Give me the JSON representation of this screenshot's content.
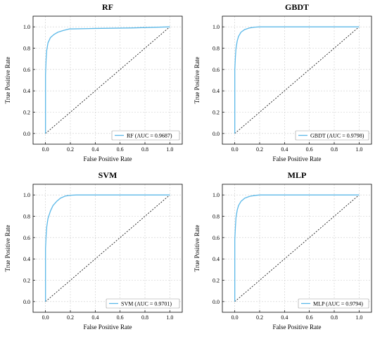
{
  "chart_data": [
    {
      "type": "line",
      "title": "RF",
      "xlabel": "False Positive Rate",
      "ylabel": "True Positive Rate",
      "xlim": [
        -0.1,
        1.1
      ],
      "ylim": [
        -0.1,
        1.1
      ],
      "xticks": [
        "0.0",
        "0.2",
        "0.4",
        "0.6",
        "0.8",
        "1.0"
      ],
      "yticks": [
        "0.0",
        "0.2",
        "0.4",
        "0.6",
        "0.8",
        "1.0"
      ],
      "grid": true,
      "legend_position": "bottom-right",
      "legend_label": "RF (AUC = 0.9687)",
      "colors": {
        "roc": "#5bb8e8",
        "diagonal": "#000000"
      },
      "series": [
        {
          "name": "RF (AUC = 0.9687)",
          "x": [
            0.0,
            0.0,
            0.005,
            0.01,
            0.02,
            0.04,
            0.07,
            0.1,
            0.14,
            0.19,
            0.4,
            0.7,
            1.0
          ],
          "y": [
            0.0,
            0.55,
            0.7,
            0.78,
            0.85,
            0.9,
            0.93,
            0.95,
            0.965,
            0.98,
            0.985,
            0.99,
            1.0
          ]
        }
      ]
    },
    {
      "type": "line",
      "title": "GBDT",
      "xlabel": "False Positive Rate",
      "ylabel": "True Positive Rate",
      "xlim": [
        -0.1,
        1.1
      ],
      "ylim": [
        -0.1,
        1.1
      ],
      "xticks": [
        "0.0",
        "0.2",
        "0.4",
        "0.6",
        "0.8",
        "1.0"
      ],
      "yticks": [
        "0.0",
        "0.2",
        "0.4",
        "0.6",
        "0.8",
        "1.0"
      ],
      "grid": true,
      "legend_position": "bottom-right",
      "legend_label": "GBDT (AUC = 0.9798)",
      "colors": {
        "roc": "#5bb8e8",
        "diagonal": "#000000"
      },
      "series": [
        {
          "name": "GBDT (AUC = 0.9798)",
          "x": [
            0.0,
            0.0,
            0.005,
            0.01,
            0.02,
            0.03,
            0.05,
            0.08,
            0.12,
            0.16,
            0.2,
            0.3,
            1.0
          ],
          "y": [
            0.0,
            0.6,
            0.72,
            0.8,
            0.87,
            0.91,
            0.95,
            0.975,
            0.99,
            0.997,
            1.0,
            1.0,
            1.0
          ]
        }
      ]
    },
    {
      "type": "line",
      "title": "SVM",
      "xlabel": "False Positive Rate",
      "ylabel": "True Positive Rate",
      "xlim": [
        -0.1,
        1.1
      ],
      "ylim": [
        -0.1,
        1.1
      ],
      "xticks": [
        "0.0",
        "0.2",
        "0.4",
        "0.6",
        "0.8",
        "1.0"
      ],
      "yticks": [
        "0.0",
        "0.2",
        "0.4",
        "0.6",
        "0.8",
        "1.0"
      ],
      "grid": true,
      "legend_position": "bottom-right",
      "legend_label": "SVM (AUC = 0.9701)",
      "colors": {
        "roc": "#5bb8e8",
        "diagonal": "#000000"
      },
      "series": [
        {
          "name": "SVM (AUC = 0.9701)",
          "x": [
            0.0,
            0.0,
            0.005,
            0.01,
            0.02,
            0.04,
            0.06,
            0.09,
            0.12,
            0.16,
            0.2,
            0.25,
            1.0
          ],
          "y": [
            0.0,
            0.5,
            0.62,
            0.7,
            0.78,
            0.85,
            0.9,
            0.94,
            0.97,
            0.99,
            0.997,
            1.0,
            1.0
          ]
        }
      ]
    },
    {
      "type": "line",
      "title": "MLP",
      "xlabel": "False Positive Rate",
      "ylabel": "True Positive Rate",
      "xlim": [
        -0.1,
        1.1
      ],
      "ylim": [
        -0.1,
        1.1
      ],
      "xticks": [
        "0.0",
        "0.2",
        "0.4",
        "0.6",
        "0.8",
        "1.0"
      ],
      "yticks": [
        "0.0",
        "0.2",
        "0.4",
        "0.6",
        "0.8",
        "1.0"
      ],
      "grid": true,
      "legend_position": "bottom-right",
      "legend_label": "MLP (AUC = 0.9794)",
      "colors": {
        "roc": "#5bb8e8",
        "diagonal": "#000000"
      },
      "series": [
        {
          "name": "MLP (AUC = 0.9794)",
          "x": [
            0.0,
            0.0,
            0.005,
            0.01,
            0.02,
            0.03,
            0.05,
            0.08,
            0.12,
            0.16,
            0.2,
            0.3,
            1.0
          ],
          "y": [
            0.0,
            0.58,
            0.7,
            0.79,
            0.86,
            0.9,
            0.94,
            0.97,
            0.987,
            0.995,
            1.0,
            1.0,
            1.0
          ]
        }
      ]
    }
  ]
}
